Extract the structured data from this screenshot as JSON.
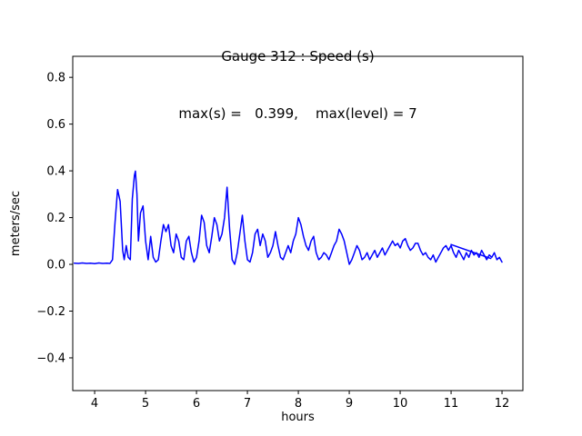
{
  "chart_data": {
    "type": "line",
    "title": "Gauge 312 : Speed (s)",
    "subtitle": "max(s) =   0.399,    max(level) = 7",
    "xlabel": "hours",
    "ylabel": "meters/sec",
    "xlim": [
      3.57,
      12.41
    ],
    "ylim": [
      -0.54,
      0.89
    ],
    "xticks": [
      4,
      5,
      6,
      7,
      8,
      9,
      10,
      11,
      12
    ],
    "yticks": [
      -0.4,
      -0.2,
      0.0,
      0.2,
      0.4,
      0.6,
      0.8
    ],
    "grid": false,
    "legend": "none",
    "line_color": "#0000ff",
    "axis_color": "#000000",
    "background_color": "#ffffff",
    "max_s": 0.399,
    "max_level": 7,
    "series": [
      {
        "name": "speed",
        "x": [
          3.6,
          3.68,
          3.76,
          3.84,
          3.92,
          4.0,
          4.08,
          4.16,
          4.24,
          4.3,
          4.35,
          4.4,
          4.45,
          4.5,
          4.55,
          4.58,
          4.62,
          4.66,
          4.7,
          4.74,
          4.78,
          4.8,
          4.83,
          4.86,
          4.9,
          4.95,
          5.0,
          5.05,
          5.1,
          5.15,
          5.2,
          5.25,
          5.3,
          5.35,
          5.4,
          5.45,
          5.5,
          5.55,
          5.6,
          5.65,
          5.7,
          5.75,
          5.8,
          5.85,
          5.9,
          5.95,
          6.0,
          6.05,
          6.1,
          6.15,
          6.2,
          6.25,
          6.3,
          6.35,
          6.4,
          6.45,
          6.5,
          6.55,
          6.6,
          6.65,
          6.7,
          6.75,
          6.8,
          6.85,
          6.9,
          6.95,
          7.0,
          7.05,
          7.1,
          7.15,
          7.2,
          7.25,
          7.3,
          7.35,
          7.4,
          7.45,
          7.5,
          7.55,
          7.6,
          7.65,
          7.7,
          7.75,
          7.8,
          7.85,
          7.9,
          7.95,
          8.0,
          8.05,
          8.1,
          8.15,
          8.2,
          8.25,
          8.3,
          8.35,
          8.4,
          8.45,
          8.5,
          8.55,
          8.6,
          8.65,
          8.7,
          8.75,
          8.8,
          8.85,
          8.9,
          8.95,
          9.0,
          9.05,
          9.1,
          9.15,
          9.2,
          9.25,
          9.3,
          9.35,
          9.4,
          9.45,
          9.5,
          9.55,
          9.6,
          9.65,
          9.7,
          9.75,
          9.8,
          9.85,
          9.9,
          9.95,
          10.0,
          10.05,
          10.1,
          10.15,
          10.2,
          10.25,
          10.3,
          10.35,
          10.4,
          10.45,
          10.5,
          10.55,
          10.6,
          10.65,
          10.7,
          10.75,
          10.8,
          10.85,
          10.9,
          10.95,
          11.0,
          11.05,
          11.1,
          11.15,
          11.2,
          11.25,
          11.3,
          11.35,
          11.4,
          11.45,
          11.5,
          11.55,
          11.6,
          11.65,
          11.7,
          11.75,
          11.8,
          11.85,
          11.9,
          11.95,
          12.0
        ],
        "y": [
          0.005,
          0.004,
          0.006,
          0.004,
          0.005,
          0.003,
          0.006,
          0.004,
          0.005,
          0.004,
          0.02,
          0.18,
          0.32,
          0.27,
          0.06,
          0.02,
          0.08,
          0.03,
          0.02,
          0.28,
          0.38,
          0.399,
          0.3,
          0.1,
          0.22,
          0.25,
          0.1,
          0.02,
          0.12,
          0.03,
          0.01,
          0.02,
          0.1,
          0.17,
          0.14,
          0.17,
          0.08,
          0.05,
          0.13,
          0.1,
          0.03,
          0.02,
          0.1,
          0.12,
          0.05,
          0.01,
          0.03,
          0.1,
          0.21,
          0.18,
          0.08,
          0.05,
          0.12,
          0.2,
          0.17,
          0.1,
          0.13,
          0.2,
          0.33,
          0.15,
          0.02,
          0.0,
          0.05,
          0.13,
          0.21,
          0.1,
          0.02,
          0.01,
          0.05,
          0.13,
          0.15,
          0.08,
          0.13,
          0.1,
          0.03,
          0.05,
          0.08,
          0.14,
          0.08,
          0.03,
          0.02,
          0.05,
          0.08,
          0.05,
          0.1,
          0.13,
          0.2,
          0.17,
          0.12,
          0.08,
          0.06,
          0.1,
          0.12,
          0.05,
          0.02,
          0.03,
          0.05,
          0.04,
          0.02,
          0.05,
          0.08,
          0.1,
          0.15,
          0.13,
          0.1,
          0.05,
          0.0,
          0.02,
          0.05,
          0.08,
          0.06,
          0.02,
          0.03,
          0.05,
          0.02,
          0.04,
          0.06,
          0.03,
          0.05,
          0.07,
          0.04,
          0.06,
          0.08,
          0.1,
          0.08,
          0.09,
          0.07,
          0.1,
          0.11,
          0.08,
          0.06,
          0.07,
          0.09,
          0.09,
          0.06,
          0.04,
          0.05,
          0.03,
          0.02,
          0.04,
          0.01,
          0.03,
          0.05,
          0.07,
          0.08,
          0.06,
          0.08,
          0.05,
          0.03,
          0.06,
          0.04,
          0.02,
          0.05,
          0.03,
          0.06,
          0.04,
          0.05,
          0.03,
          0.06,
          0.04,
          0.02,
          0.04,
          0.03,
          0.05,
          0.02,
          0.03,
          0.01
        ]
      },
      {
        "name": "overlay-segment",
        "x": [
          11.0,
          11.78
        ],
        "y": [
          0.085,
          0.025
        ]
      }
    ]
  }
}
